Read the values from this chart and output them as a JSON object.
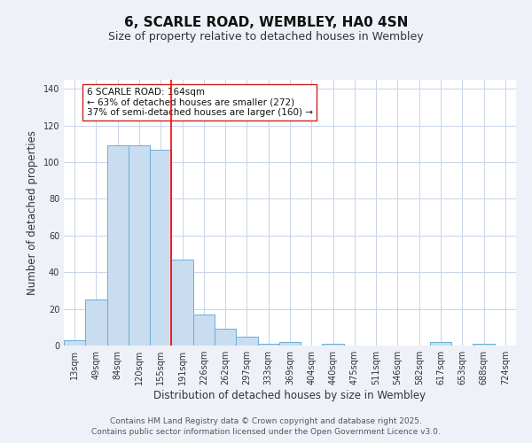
{
  "title": "6, SCARLE ROAD, WEMBLEY, HA0 4SN",
  "subtitle": "Size of property relative to detached houses in Wembley",
  "xlabel": "Distribution of detached houses by size in Wembley",
  "ylabel": "Number of detached properties",
  "bar_labels": [
    "13sqm",
    "49sqm",
    "84sqm",
    "120sqm",
    "155sqm",
    "191sqm",
    "226sqm",
    "262sqm",
    "297sqm",
    "333sqm",
    "369sqm",
    "404sqm",
    "440sqm",
    "475sqm",
    "511sqm",
    "546sqm",
    "582sqm",
    "617sqm",
    "653sqm",
    "688sqm",
    "724sqm"
  ],
  "bar_values": [
    3,
    25,
    109,
    109,
    107,
    47,
    17,
    9,
    5,
    1,
    2,
    0,
    1,
    0,
    0,
    0,
    0,
    2,
    0,
    1,
    0
  ],
  "bar_color": "#c9ddf0",
  "bar_edge_color": "#6aaed6",
  "ylim": [
    0,
    145
  ],
  "yticks": [
    0,
    20,
    40,
    60,
    80,
    100,
    120,
    140
  ],
  "red_line_x": 4.5,
  "annotation_title": "6 SCARLE ROAD: 164sqm",
  "annotation_line1": "← 63% of detached houses are smaller (272)",
  "annotation_line2": "37% of semi-detached houses are larger (160) →",
  "footer_line1": "Contains HM Land Registry data © Crown copyright and database right 2025.",
  "footer_line2": "Contains public sector information licensed under the Open Government Licence v3.0.",
  "background_color": "#eef2f8",
  "plot_bg_color": "#ffffff",
  "grid_color": "#c8d4e8",
  "title_fontsize": 11,
  "subtitle_fontsize": 9,
  "axis_label_fontsize": 8.5,
  "tick_fontsize": 7,
  "footer_fontsize": 6.5
}
